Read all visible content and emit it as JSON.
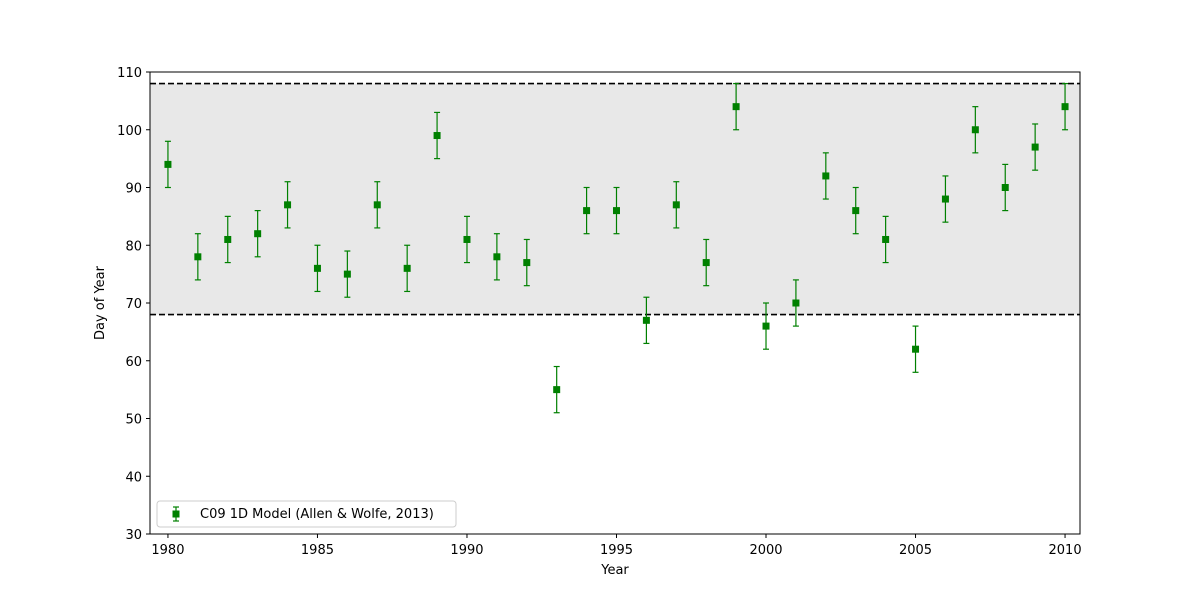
{
  "chart_data": {
    "type": "scatter",
    "title": "",
    "xlabel": "Year",
    "ylabel": "Day of Year",
    "xlim": [
      1979.4,
      2010.5
    ],
    "ylim": [
      30,
      110
    ],
    "xticks": [
      1980,
      1985,
      1990,
      1995,
      2000,
      2005,
      2010
    ],
    "yticks": [
      30,
      40,
      50,
      60,
      70,
      80,
      90,
      100,
      110
    ],
    "band": {
      "low": 68,
      "high": 108,
      "color": "#e8e8e8",
      "line_style": "dashed",
      "line_color": "#000000"
    },
    "legend_position": "lower-left",
    "series": [
      {
        "name": "C09 1D Model (Allen & Wolfe, 2013)",
        "color": "#008000",
        "marker": "square",
        "error": 4,
        "x": [
          1980,
          1981,
          1982,
          1983,
          1984,
          1985,
          1986,
          1987,
          1988,
          1989,
          1990,
          1991,
          1992,
          1993,
          1994,
          1995,
          1996,
          1997,
          1998,
          1999,
          2000,
          2001,
          2002,
          2003,
          2004,
          2005,
          2006,
          2007,
          2008,
          2009,
          2010
        ],
        "y": [
          94,
          78,
          81,
          82,
          87,
          76,
          75,
          87,
          76,
          99,
          81,
          78,
          77,
          55,
          86,
          86,
          67,
          87,
          77,
          104,
          66,
          70,
          92,
          86,
          81,
          62,
          88,
          100,
          90,
          97,
          104
        ]
      }
    ]
  }
}
